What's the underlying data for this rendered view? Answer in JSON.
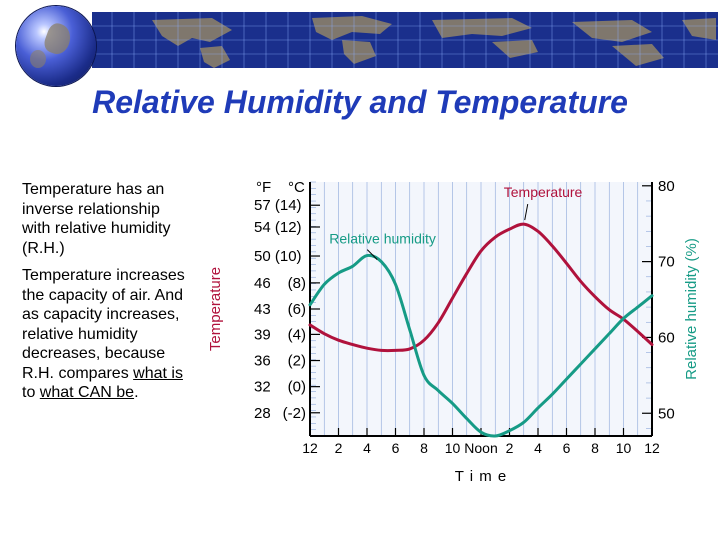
{
  "slide": {
    "title": "Relative Humidity and Temperature",
    "paragraph1": "Temperature has an inverse relationship with relative humidity (R.H.)",
    "paragraph2_a": "Temperature increases the capacity of air.  And as capacity increases, relative humidity decreases, because R.H. compares ",
    "paragraph2_u1": "what is",
    "paragraph2_b": " to ",
    "paragraph2_u2": "what CAN be",
    "paragraph2_c": "."
  },
  "chart_data": {
    "type": "line",
    "title": "",
    "xlabel": "T i m e",
    "x_ticks": [
      "12",
      "2",
      "4",
      "6",
      "8",
      "10",
      "Noon",
      "2",
      "4",
      "6",
      "8",
      "10",
      "12"
    ],
    "x_hours": [
      0,
      24
    ],
    "ylabel_left": "Temperature",
    "ylabel_right": "Relative humidity (%)",
    "left_axis_header": [
      "°F",
      "°C"
    ],
    "left_ticks": [
      {
        "label": "57 (14)",
        "value": 57
      },
      {
        "label": "54 (12)",
        "value": 54
      },
      {
        "label": "50 (10)",
        "value": 50
      },
      {
        "label": "46",
        "value": 46.3,
        "c": "(8)"
      },
      {
        "label": "43",
        "value": 42.7,
        "c": "(6)"
      },
      {
        "label": "39",
        "value": 39.2,
        "c": "(4)"
      },
      {
        "label": "36",
        "value": 35.6,
        "c": "(2)"
      },
      {
        "label": "32",
        "value": 32,
        "c": "(0)"
      },
      {
        "label": "28",
        "value": 28.4,
        "c": "(-2)"
      }
    ],
    "left_ylim": [
      25.2,
      60.2
    ],
    "right_ticks": [
      50,
      60,
      70,
      80
    ],
    "right_ylim": [
      47,
      80.5
    ],
    "colors": {
      "temperature": "#b0123c",
      "humidity": "#169b86",
      "frame": "#000000",
      "grid": "#8aa6d9"
    },
    "series": [
      {
        "name": "Temperature",
        "axis": "left",
        "x": [
          0,
          1,
          2,
          3,
          4,
          5,
          6,
          7,
          8,
          9,
          10,
          11,
          12,
          13,
          14,
          15,
          16,
          17,
          18,
          19,
          20,
          21,
          22,
          23,
          24
        ],
        "y": [
          40.5,
          39.3,
          38.4,
          37.8,
          37.3,
          37.0,
          37.0,
          37.2,
          38.4,
          40.8,
          44.2,
          47.6,
          50.7,
          52.6,
          53.7,
          54.4,
          53.4,
          51.4,
          49.0,
          46.5,
          44.4,
          42.6,
          41.3,
          39.6,
          37.8
        ]
      },
      {
        "name": "Relative humidity",
        "axis": "right",
        "x": [
          0,
          1,
          2,
          3,
          4,
          5,
          6,
          7,
          8,
          9,
          10,
          11,
          12,
          13,
          14,
          15,
          16,
          17,
          18,
          19,
          20,
          21,
          22,
          23,
          24
        ],
        "y": [
          64.3,
          67.0,
          68.5,
          69.4,
          70.8,
          70.0,
          67.0,
          61.0,
          55.0,
          53.0,
          51.3,
          49.3,
          47.5,
          47.0,
          47.7,
          48.8,
          50.7,
          52.5,
          54.5,
          56.5,
          58.5,
          60.5,
          62.5,
          64.0,
          65.5
        ]
      }
    ],
    "annotations": [
      {
        "text": "Relative humidity",
        "series": 1
      },
      {
        "text": "Temperature",
        "series": 0
      }
    ]
  }
}
